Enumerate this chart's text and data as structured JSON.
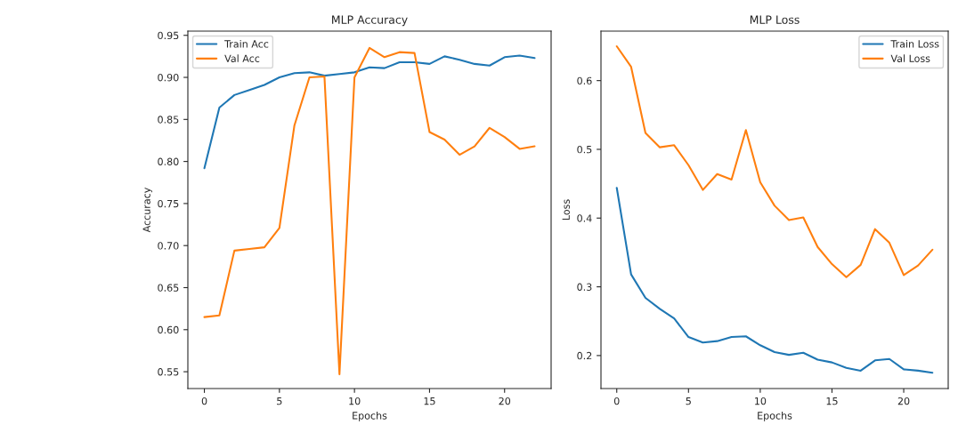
{
  "chart_data": [
    {
      "type": "line",
      "title": "MLP Accuracy",
      "xlabel": "Epochs",
      "ylabel": "Accuracy",
      "x": [
        0,
        1,
        2,
        3,
        4,
        5,
        6,
        7,
        8,
        9,
        10,
        11,
        12,
        13,
        14,
        15,
        16,
        17,
        18,
        19,
        20,
        21,
        22
      ],
      "series": [
        {
          "name": "Train Acc",
          "color": "#1f77b4",
          "values": [
            0.792,
            0.864,
            0.879,
            0.885,
            0.891,
            0.9,
            0.905,
            0.906,
            0.902,
            0.904,
            0.906,
            0.912,
            0.911,
            0.918,
            0.918,
            0.916,
            0.925,
            0.921,
            0.916,
            0.914,
            0.924,
            0.926,
            0.923
          ]
        },
        {
          "name": "Val Acc",
          "color": "#ff7f0e",
          "values": [
            0.615,
            0.617,
            0.694,
            0.696,
            0.698,
            0.721,
            0.843,
            0.9,
            0.901,
            0.547,
            0.9,
            0.935,
            0.924,
            0.93,
            0.929,
            0.835,
            0.826,
            0.808,
            0.818,
            0.84,
            0.829,
            0.815,
            0.818
          ]
        }
      ],
      "xlim": [
        -1.1,
        23.1
      ],
      "xticks": [
        0,
        5,
        10,
        15,
        20
      ],
      "ylim": [
        0.53,
        0.955
      ],
      "yticks": [
        {
          "value": 0.55,
          "label": "0.55"
        },
        {
          "value": 0.6,
          "label": "0.60"
        },
        {
          "value": 0.65,
          "label": "0.65"
        },
        {
          "value": 0.7,
          "label": "0.70"
        },
        {
          "value": 0.75,
          "label": "0.75"
        },
        {
          "value": 0.8,
          "label": "0.80"
        },
        {
          "value": 0.85,
          "label": "0.85"
        },
        {
          "value": 0.9,
          "label": "0.90"
        },
        {
          "value": 0.95,
          "label": "0.95"
        }
      ],
      "legend": "top left",
      "grid": false,
      "marker": "none",
      "line_style": "solid"
    },
    {
      "type": "line",
      "title": "MLP Loss",
      "xlabel": "Epochs",
      "ylabel": "Loss",
      "x": [
        0,
        1,
        2,
        3,
        4,
        5,
        6,
        7,
        8,
        9,
        10,
        11,
        12,
        13,
        14,
        15,
        16,
        17,
        18,
        19,
        20,
        21,
        22
      ],
      "series": [
        {
          "name": "Train Loss",
          "color": "#1f77b4",
          "values": [
            0.444,
            0.318,
            0.284,
            0.268,
            0.254,
            0.227,
            0.219,
            0.221,
            0.227,
            0.228,
            0.215,
            0.205,
            0.201,
            0.204,
            0.194,
            0.19,
            0.182,
            0.178,
            0.193,
            0.195,
            0.18,
            0.178,
            0.175
          ]
        },
        {
          "name": "Val Loss",
          "color": "#ff7f0e",
          "values": [
            0.65,
            0.62,
            0.524,
            0.503,
            0.506,
            0.477,
            0.441,
            0.464,
            0.456,
            0.528,
            0.452,
            0.418,
            0.397,
            0.401,
            0.358,
            0.333,
            0.314,
            0.332,
            0.384,
            0.364,
            0.317,
            0.331,
            0.354
          ]
        }
      ],
      "xlim": [
        -1.1,
        23.1
      ],
      "xticks": [
        0,
        5,
        10,
        15,
        20
      ],
      "ylim": [
        0.152,
        0.672
      ],
      "yticks": [
        0.2,
        0.3,
        0.4,
        0.5,
        0.6
      ],
      "legend": "top right",
      "grid": false,
      "marker": "none",
      "line_style": "solid"
    }
  ]
}
